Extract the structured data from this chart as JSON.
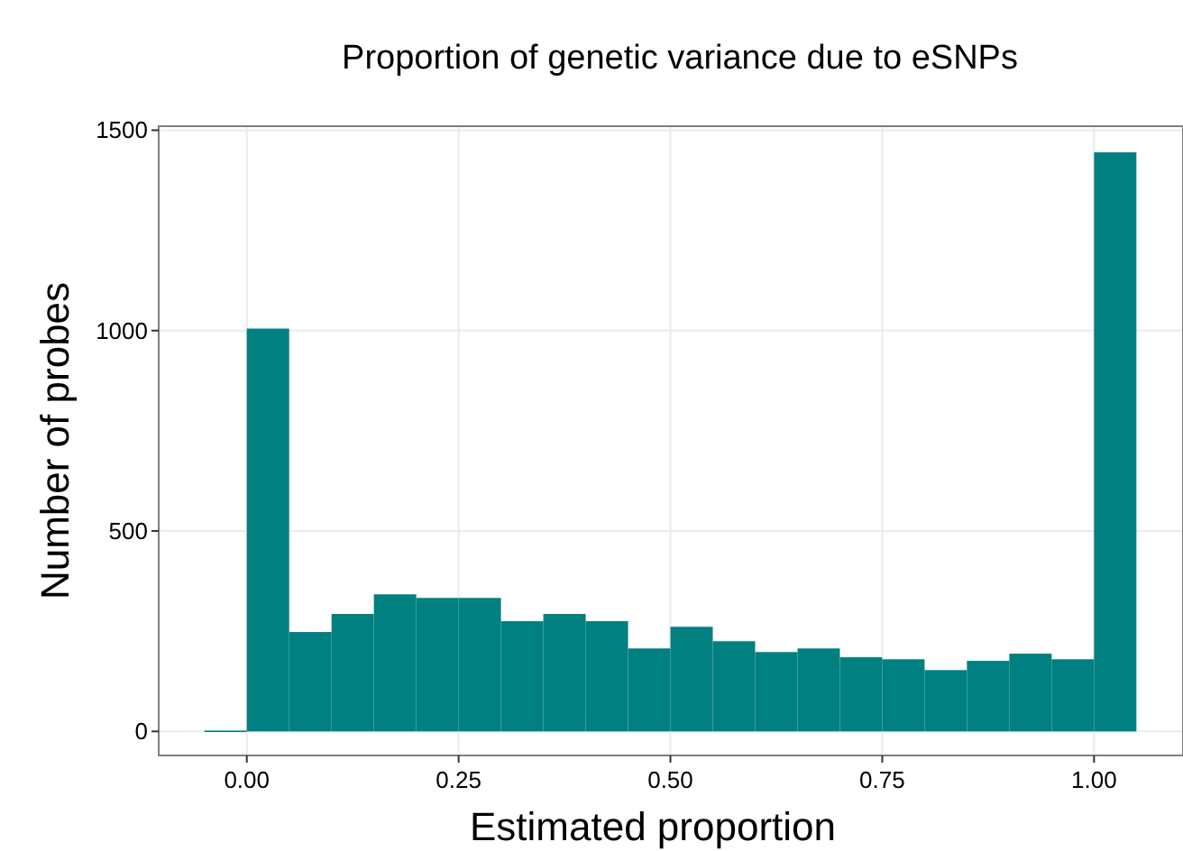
{
  "chart_data": {
    "type": "histogram",
    "title": "Proportion of genetic variance due to eSNPs",
    "xlabel": "Estimated proportion",
    "ylabel": "Number of probes",
    "bins": [
      -0.05,
      0,
      0.05,
      0.1,
      0.15,
      0.2,
      0.25,
      0.3,
      0.35,
      0.4,
      0.45,
      0.5,
      0.55,
      0.6,
      0.65,
      0.7,
      0.75,
      0.8,
      0.85,
      0.9,
      0.95,
      1,
      1.05
    ],
    "values": [
      2,
      1005,
      248,
      293,
      342,
      333,
      333,
      275,
      293,
      275,
      207,
      261,
      225,
      198,
      207,
      185,
      180,
      153,
      176,
      194,
      180,
      1445
    ],
    "color": "#008080",
    "xlim": [
      -0.104,
      1.105
    ],
    "xticks": [
      {
        "value": 0,
        "label": "0.00"
      },
      {
        "value": 0.25,
        "label": "0.25"
      },
      {
        "value": 0.5,
        "label": "0.50"
      },
      {
        "value": 0.75,
        "label": "0.75"
      },
      {
        "value": 1,
        "label": "1.00"
      }
    ],
    "ylim": [
      -60,
      1510
    ],
    "yticks": [
      0,
      500,
      1000,
      1500
    ],
    "grid": true
  }
}
